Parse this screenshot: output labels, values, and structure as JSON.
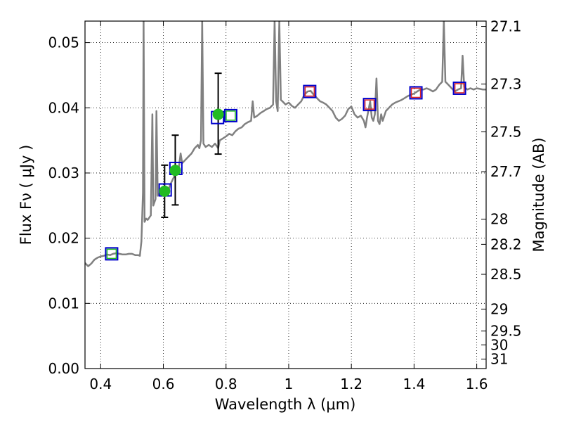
{
  "chart_data": {
    "type": "scatter",
    "x_axis": {
      "label": "Wavelength  λ (μm)",
      "ticks": [
        "0.4",
        "0.6",
        "0.8",
        "1",
        "1.2",
        "1.4",
        "1.6"
      ],
      "tick_values": [
        0.4,
        0.6,
        0.8,
        1.0,
        1.2,
        1.4,
        1.6
      ],
      "range": [
        0.35,
        1.63
      ]
    },
    "y_axis": {
      "label": "Flux  Fν  ( μJy )",
      "ticks": [
        "0.00",
        "0.01",
        "0.02",
        "0.03",
        "0.04",
        "0.05"
      ],
      "tick_values": [
        0.0,
        0.01,
        0.02,
        0.03,
        0.04,
        0.05
      ],
      "range": [
        0.0,
        0.0533
      ]
    },
    "y2_axis": {
      "label": "Magnitude (AB)",
      "ticks": [
        "27.1",
        "27.3",
        "27.5",
        "27.7",
        "28",
        "28.2",
        "28.5",
        "29",
        "29.5",
        "30",
        "31"
      ],
      "tick_values": [
        27.1,
        27.3,
        27.5,
        27.7,
        28.0,
        28.2,
        28.5,
        29.0,
        29.5,
        30.0,
        31.0
      ]
    },
    "grid": true,
    "series": [
      {
        "kind": "spectrum",
        "color": "#808080",
        "points": [
          [
            0.35,
            0.0162
          ],
          [
            0.36,
            0.0157
          ],
          [
            0.37,
            0.0161
          ],
          [
            0.38,
            0.0167
          ],
          [
            0.39,
            0.017
          ],
          [
            0.4,
            0.0172
          ],
          [
            0.41,
            0.0173
          ],
          [
            0.42,
            0.0175
          ],
          [
            0.43,
            0.0174
          ],
          [
            0.44,
            0.0176
          ],
          [
            0.45,
            0.0177
          ],
          [
            0.46,
            0.0176
          ],
          [
            0.47,
            0.0175
          ],
          [
            0.48,
            0.0175
          ],
          [
            0.49,
            0.0176
          ],
          [
            0.5,
            0.0176
          ],
          [
            0.51,
            0.0174
          ],
          [
            0.52,
            0.0174
          ],
          [
            0.525,
            0.0173
          ],
          [
            0.53,
            0.0195
          ],
          [
            0.535,
            0.027
          ],
          [
            0.537,
            0.0533
          ],
          [
            0.54,
            0.0225
          ],
          [
            0.545,
            0.023
          ],
          [
            0.55,
            0.0228
          ],
          [
            0.56,
            0.0235
          ],
          [
            0.565,
            0.039
          ],
          [
            0.568,
            0.025
          ],
          [
            0.575,
            0.026
          ],
          [
            0.578,
            0.0395
          ],
          [
            0.582,
            0.0265
          ],
          [
            0.59,
            0.027
          ],
          [
            0.6,
            0.0275
          ],
          [
            0.61,
            0.0278
          ],
          [
            0.615,
            0.0265
          ],
          [
            0.62,
            0.028
          ],
          [
            0.63,
            0.029
          ],
          [
            0.64,
            0.03
          ],
          [
            0.65,
            0.031
          ],
          [
            0.655,
            0.033
          ],
          [
            0.66,
            0.0315
          ],
          [
            0.67,
            0.032
          ],
          [
            0.68,
            0.0325
          ],
          [
            0.69,
            0.033
          ],
          [
            0.7,
            0.0338
          ],
          [
            0.71,
            0.0343
          ],
          [
            0.715,
            0.0338
          ],
          [
            0.72,
            0.035
          ],
          [
            0.724,
            0.0533
          ],
          [
            0.728,
            0.0345
          ],
          [
            0.735,
            0.034
          ],
          [
            0.745,
            0.0343
          ],
          [
            0.755,
            0.034
          ],
          [
            0.765,
            0.0345
          ],
          [
            0.775,
            0.0338
          ],
          [
            0.78,
            0.035
          ],
          [
            0.79,
            0.0353
          ],
          [
            0.8,
            0.0356
          ],
          [
            0.81,
            0.036
          ],
          [
            0.82,
            0.0358
          ],
          [
            0.83,
            0.0364
          ],
          [
            0.84,
            0.0368
          ],
          [
            0.85,
            0.037
          ],
          [
            0.86,
            0.0375
          ],
          [
            0.87,
            0.0378
          ],
          [
            0.88,
            0.038
          ],
          [
            0.885,
            0.041
          ],
          [
            0.89,
            0.0385
          ],
          [
            0.9,
            0.0388
          ],
          [
            0.91,
            0.0392
          ],
          [
            0.92,
            0.0395
          ],
          [
            0.93,
            0.0398
          ],
          [
            0.94,
            0.04
          ],
          [
            0.95,
            0.0405
          ],
          [
            0.955,
            0.0533
          ],
          [
            0.96,
            0.041
          ],
          [
            0.965,
            0.0395
          ],
          [
            0.97,
            0.0533
          ],
          [
            0.975,
            0.0412
          ],
          [
            0.98,
            0.041
          ],
          [
            0.99,
            0.0405
          ],
          [
            1.0,
            0.0408
          ],
          [
            1.01,
            0.0403
          ],
          [
            1.02,
            0.04
          ],
          [
            1.03,
            0.0405
          ],
          [
            1.04,
            0.041
          ],
          [
            1.05,
            0.042
          ],
          [
            1.06,
            0.0425
          ],
          [
            1.07,
            0.0426
          ],
          [
            1.08,
            0.042
          ],
          [
            1.09,
            0.0415
          ],
          [
            1.1,
            0.041
          ],
          [
            1.11,
            0.0408
          ],
          [
            1.12,
            0.0405
          ],
          [
            1.13,
            0.04
          ],
          [
            1.14,
            0.0395
          ],
          [
            1.15,
            0.0385
          ],
          [
            1.16,
            0.038
          ],
          [
            1.17,
            0.0383
          ],
          [
            1.18,
            0.0388
          ],
          [
            1.19,
            0.0398
          ],
          [
            1.2,
            0.0402
          ],
          [
            1.21,
            0.039
          ],
          [
            1.22,
            0.0385
          ],
          [
            1.23,
            0.0388
          ],
          [
            1.24,
            0.038
          ],
          [
            1.245,
            0.037
          ],
          [
            1.25,
            0.0385
          ],
          [
            1.26,
            0.041
          ],
          [
            1.265,
            0.0385
          ],
          [
            1.27,
            0.038
          ],
          [
            1.275,
            0.039
          ],
          [
            1.28,
            0.0445
          ],
          [
            1.285,
            0.038
          ],
          [
            1.29,
            0.0375
          ],
          [
            1.295,
            0.039
          ],
          [
            1.3,
            0.038
          ],
          [
            1.31,
            0.0395
          ],
          [
            1.32,
            0.04
          ],
          [
            1.33,
            0.0405
          ],
          [
            1.34,
            0.0408
          ],
          [
            1.35,
            0.041
          ],
          [
            1.36,
            0.0412
          ],
          [
            1.37,
            0.0415
          ],
          [
            1.38,
            0.0418
          ],
          [
            1.39,
            0.042
          ],
          [
            1.4,
            0.0422
          ],
          [
            1.41,
            0.0425
          ],
          [
            1.42,
            0.0428
          ],
          [
            1.43,
            0.0428
          ],
          [
            1.44,
            0.043
          ],
          [
            1.45,
            0.0428
          ],
          [
            1.46,
            0.0425
          ],
          [
            1.47,
            0.0428
          ],
          [
            1.48,
            0.0435
          ],
          [
            1.49,
            0.044
          ],
          [
            1.495,
            0.0533
          ],
          [
            1.5,
            0.044
          ],
          [
            1.51,
            0.0435
          ],
          [
            1.52,
            0.043
          ],
          [
            1.53,
            0.0425
          ],
          [
            1.54,
            0.0428
          ],
          [
            1.55,
            0.043
          ],
          [
            1.555,
            0.048
          ],
          [
            1.56,
            0.0432
          ],
          [
            1.57,
            0.0428
          ],
          [
            1.58,
            0.043
          ],
          [
            1.59,
            0.0428
          ],
          [
            1.6,
            0.043
          ],
          [
            1.61,
            0.0429
          ],
          [
            1.62,
            0.0428
          ],
          [
            1.63,
            0.0428
          ]
        ]
      },
      {
        "kind": "observed",
        "color": "#22bb22",
        "points": [
          {
            "x": 0.604,
            "y": 0.0272,
            "yerr_low": 0.0232,
            "yerr_high": 0.0312
          },
          {
            "x": 0.638,
            "y": 0.0304,
            "yerr_low": 0.0251,
            "yerr_high": 0.0358
          },
          {
            "x": 0.775,
            "y": 0.039,
            "yerr_low": 0.0329,
            "yerr_high": 0.0453
          }
        ]
      },
      {
        "kind": "model-photometry-squares",
        "edge_color": "#0000cc",
        "points": [
          {
            "x": 0.435,
            "y": 0.0176
          },
          {
            "x": 0.606,
            "y": 0.0274
          },
          {
            "x": 0.64,
            "y": 0.0307
          },
          {
            "x": 0.773,
            "y": 0.0385
          },
          {
            "x": 0.815,
            "y": 0.0388
          },
          {
            "x": 1.067,
            "y": 0.0425
          },
          {
            "x": 1.258,
            "y": 0.0405
          },
          {
            "x": 1.406,
            "y": 0.0423
          },
          {
            "x": 1.545,
            "y": 0.043
          }
        ]
      },
      {
        "kind": "inner-squares",
        "points": [
          {
            "x": 0.435,
            "y": 0.0176,
            "color": "#22bb22"
          },
          {
            "x": 0.815,
            "y": 0.0388,
            "color": "#22bb22"
          },
          {
            "x": 1.067,
            "y": 0.0425,
            "color": "#dd2222"
          },
          {
            "x": 1.258,
            "y": 0.0405,
            "color": "#dd2222"
          },
          {
            "x": 1.406,
            "y": 0.0423,
            "color": "#dd2222"
          },
          {
            "x": 1.545,
            "y": 0.043,
            "color": "#dd2222"
          }
        ]
      }
    ]
  }
}
